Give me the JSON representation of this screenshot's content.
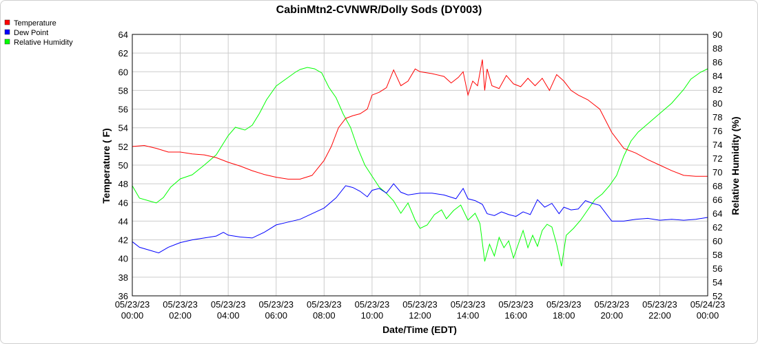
{
  "chart_data": {
    "type": "line",
    "title": "CabinMtn2-CVNWR/Dolly Sods (DY003)",
    "xlabel": "Date/Time (EDT)",
    "ylabel": "Temperature ( F)",
    "ylabel_right": "Relative Humidity (%)",
    "ylim": [
      36,
      64
    ],
    "ylim_right": [
      52,
      90
    ],
    "yticks": [
      "36",
      "38",
      "40",
      "42",
      "44",
      "46",
      "48",
      "50",
      "52",
      "54",
      "56",
      "58",
      "60",
      "62",
      "64"
    ],
    "yticks_right": [
      "52",
      "54",
      "56",
      "58",
      "60",
      "62",
      "64",
      "66",
      "68",
      "70",
      "72",
      "74",
      "76",
      "78",
      "80",
      "82",
      "84",
      "86",
      "88",
      "90"
    ],
    "xlim_hours": [
      0,
      24
    ],
    "xticks": [
      {
        "h": 0,
        "line1": "05/23/23",
        "line2": "00:00"
      },
      {
        "h": 2,
        "line1": "05/23/23",
        "line2": "02:00"
      },
      {
        "h": 4,
        "line1": "05/23/23",
        "line2": "04:00"
      },
      {
        "h": 6,
        "line1": "05/23/23",
        "line2": "06:00"
      },
      {
        "h": 8,
        "line1": "05/23/23",
        "line2": "08:00"
      },
      {
        "h": 10,
        "line1": "05/23/23",
        "line2": "10:00"
      },
      {
        "h": 12,
        "line1": "05/23/23",
        "line2": "12:00"
      },
      {
        "h": 14,
        "line1": "05/23/23",
        "line2": "14:00"
      },
      {
        "h": 16,
        "line1": "05/23/23",
        "line2": "16:00"
      },
      {
        "h": 18,
        "line1": "05/23/23",
        "line2": "18:00"
      },
      {
        "h": 20,
        "line1": "05/23/23",
        "line2": "20:00"
      },
      {
        "h": 22,
        "line1": "05/23/23",
        "line2": "22:00"
      },
      {
        "h": 24,
        "line1": "05/24/23",
        "line2": "00:00"
      }
    ],
    "grid": true,
    "legend_position": "top-left",
    "series": [
      {
        "name": "Temperature",
        "color": "#ff0000",
        "axis": "left",
        "points": [
          [
            0,
            52.0
          ],
          [
            0.5,
            52.1
          ],
          [
            1,
            51.8
          ],
          [
            1.5,
            51.4
          ],
          [
            2,
            51.4
          ],
          [
            2.5,
            51.2
          ],
          [
            3,
            51.1
          ],
          [
            3.5,
            50.8
          ],
          [
            4,
            50.3
          ],
          [
            4.5,
            49.9
          ],
          [
            5,
            49.4
          ],
          [
            5.5,
            49.0
          ],
          [
            6,
            48.7
          ],
          [
            6.5,
            48.5
          ],
          [
            7,
            48.5
          ],
          [
            7.5,
            48.9
          ],
          [
            8,
            50.5
          ],
          [
            8.3,
            52.0
          ],
          [
            8.6,
            54.0
          ],
          [
            8.9,
            55.0
          ],
          [
            9.2,
            55.3
          ],
          [
            9.5,
            55.5
          ],
          [
            9.8,
            56.0
          ],
          [
            10,
            57.5
          ],
          [
            10.3,
            57.8
          ],
          [
            10.6,
            58.3
          ],
          [
            10.9,
            60.2
          ],
          [
            11.2,
            58.5
          ],
          [
            11.5,
            59.0
          ],
          [
            11.8,
            60.3
          ],
          [
            12,
            60.0
          ],
          [
            12.5,
            59.8
          ],
          [
            13,
            59.5
          ],
          [
            13.3,
            58.8
          ],
          [
            13.6,
            59.4
          ],
          [
            13.8,
            60.0
          ],
          [
            14.0,
            57.5
          ],
          [
            14.2,
            59.0
          ],
          [
            14.4,
            58.5
          ],
          [
            14.6,
            61.3
          ],
          [
            14.7,
            58.0
          ],
          [
            14.8,
            60.3
          ],
          [
            15.0,
            58.5
          ],
          [
            15.3,
            58.2
          ],
          [
            15.6,
            59.6
          ],
          [
            15.9,
            58.7
          ],
          [
            16.2,
            58.4
          ],
          [
            16.5,
            59.3
          ],
          [
            16.8,
            58.5
          ],
          [
            17.1,
            59.3
          ],
          [
            17.4,
            58.0
          ],
          [
            17.7,
            59.7
          ],
          [
            18.0,
            59.0
          ],
          [
            18.3,
            58.0
          ],
          [
            18.6,
            57.5
          ],
          [
            19.0,
            57.0
          ],
          [
            19.5,
            56.0
          ],
          [
            20,
            53.5
          ],
          [
            20.5,
            51.8
          ],
          [
            21,
            51.3
          ],
          [
            21.5,
            50.6
          ],
          [
            22,
            50.0
          ],
          [
            22.5,
            49.4
          ],
          [
            23,
            48.9
          ],
          [
            23.5,
            48.8
          ],
          [
            24,
            48.8
          ]
        ]
      },
      {
        "name": "Dew Point",
        "color": "#0000ff",
        "axis": "left",
        "points": [
          [
            0,
            41.8
          ],
          [
            0.3,
            41.2
          ],
          [
            0.7,
            40.9
          ],
          [
            1.1,
            40.6
          ],
          [
            1.5,
            41.2
          ],
          [
            2,
            41.7
          ],
          [
            2.5,
            42.0
          ],
          [
            3,
            42.2
          ],
          [
            3.5,
            42.4
          ],
          [
            3.8,
            42.8
          ],
          [
            4,
            42.5
          ],
          [
            4.5,
            42.3
          ],
          [
            5,
            42.2
          ],
          [
            5.5,
            42.8
          ],
          [
            6,
            43.6
          ],
          [
            6.5,
            43.9
          ],
          [
            7,
            44.2
          ],
          [
            7.5,
            44.8
          ],
          [
            8,
            45.4
          ],
          [
            8.5,
            46.5
          ],
          [
            8.9,
            47.8
          ],
          [
            9.2,
            47.6
          ],
          [
            9.5,
            47.2
          ],
          [
            9.8,
            46.6
          ],
          [
            10,
            47.3
          ],
          [
            10.3,
            47.5
          ],
          [
            10.6,
            47.0
          ],
          [
            10.9,
            48.0
          ],
          [
            11.2,
            47.1
          ],
          [
            11.5,
            46.8
          ],
          [
            12,
            47.0
          ],
          [
            12.5,
            47.0
          ],
          [
            13,
            46.8
          ],
          [
            13.5,
            46.4
          ],
          [
            13.8,
            47.5
          ],
          [
            14.0,
            46.4
          ],
          [
            14.3,
            46.2
          ],
          [
            14.6,
            45.8
          ],
          [
            14.8,
            44.8
          ],
          [
            15.1,
            44.6
          ],
          [
            15.4,
            45.0
          ],
          [
            15.7,
            44.7
          ],
          [
            16.0,
            44.5
          ],
          [
            16.3,
            45.0
          ],
          [
            16.6,
            44.7
          ],
          [
            16.9,
            46.3
          ],
          [
            17.2,
            45.5
          ],
          [
            17.5,
            45.9
          ],
          [
            17.8,
            44.8
          ],
          [
            18.0,
            45.5
          ],
          [
            18.3,
            45.2
          ],
          [
            18.6,
            45.3
          ],
          [
            18.9,
            46.2
          ],
          [
            19.2,
            45.9
          ],
          [
            19.5,
            45.7
          ],
          [
            20,
            44.0
          ],
          [
            20.5,
            44.0
          ],
          [
            21,
            44.2
          ],
          [
            21.5,
            44.3
          ],
          [
            22,
            44.1
          ],
          [
            22.5,
            44.2
          ],
          [
            23,
            44.1
          ],
          [
            23.5,
            44.2
          ],
          [
            24,
            44.4
          ]
        ]
      },
      {
        "name": "Relative Humidity",
        "color": "#00ff00",
        "axis": "right",
        "points": [
          [
            0,
            68.0
          ],
          [
            0.3,
            66.2
          ],
          [
            0.7,
            65.8
          ],
          [
            1.0,
            65.5
          ],
          [
            1.3,
            66.3
          ],
          [
            1.6,
            67.8
          ],
          [
            2,
            69.0
          ],
          [
            2.5,
            69.6
          ],
          [
            3,
            71.0
          ],
          [
            3.5,
            72.5
          ],
          [
            4,
            75.3
          ],
          [
            4.3,
            76.5
          ],
          [
            4.7,
            76.1
          ],
          [
            5,
            76.8
          ],
          [
            5.3,
            78.5
          ],
          [
            5.6,
            80.5
          ],
          [
            6,
            82.5
          ],
          [
            6.4,
            83.5
          ],
          [
            6.8,
            84.5
          ],
          [
            7.0,
            84.9
          ],
          [
            7.3,
            85.2
          ],
          [
            7.6,
            85.0
          ],
          [
            7.9,
            84.4
          ],
          [
            8.2,
            82.3
          ],
          [
            8.5,
            80.8
          ],
          [
            8.8,
            78.4
          ],
          [
            9.1,
            76.5
          ],
          [
            9.4,
            73.5
          ],
          [
            9.7,
            71.0
          ],
          [
            10.0,
            69.4
          ],
          [
            10.3,
            67.8
          ],
          [
            10.6,
            66.9
          ],
          [
            10.9,
            65.8
          ],
          [
            11.2,
            64.0
          ],
          [
            11.5,
            65.5
          ],
          [
            11.8,
            63.0
          ],
          [
            12.0,
            61.8
          ],
          [
            12.3,
            62.3
          ],
          [
            12.6,
            63.8
          ],
          [
            12.9,
            64.5
          ],
          [
            13.1,
            63.2
          ],
          [
            13.4,
            64.4
          ],
          [
            13.7,
            65.2
          ],
          [
            14.0,
            63.0
          ],
          [
            14.3,
            64.0
          ],
          [
            14.5,
            62.5
          ],
          [
            14.7,
            57.0
          ],
          [
            14.9,
            59.5
          ],
          [
            15.1,
            57.8
          ],
          [
            15.3,
            60.5
          ],
          [
            15.5,
            59.0
          ],
          [
            15.7,
            60.0
          ],
          [
            15.9,
            57.5
          ],
          [
            16.1,
            59.5
          ],
          [
            16.3,
            61.5
          ],
          [
            16.5,
            59.0
          ],
          [
            16.7,
            60.8
          ],
          [
            16.9,
            59.2
          ],
          [
            17.1,
            61.5
          ],
          [
            17.3,
            62.4
          ],
          [
            17.5,
            62.0
          ],
          [
            17.7,
            59.5
          ],
          [
            17.9,
            56.3
          ],
          [
            18.1,
            60.8
          ],
          [
            18.4,
            61.8
          ],
          [
            18.7,
            63.0
          ],
          [
            19.0,
            64.5
          ],
          [
            19.3,
            66.0
          ],
          [
            19.6,
            66.8
          ],
          [
            19.9,
            68.0
          ],
          [
            20.2,
            69.5
          ],
          [
            20.5,
            72.3
          ],
          [
            20.8,
            74.5
          ],
          [
            21.1,
            75.8
          ],
          [
            21.5,
            77.0
          ],
          [
            22.0,
            78.5
          ],
          [
            22.5,
            80.0
          ],
          [
            23.0,
            82.0
          ],
          [
            23.3,
            83.5
          ],
          [
            23.7,
            84.5
          ],
          [
            24,
            85.0
          ]
        ]
      }
    ]
  }
}
